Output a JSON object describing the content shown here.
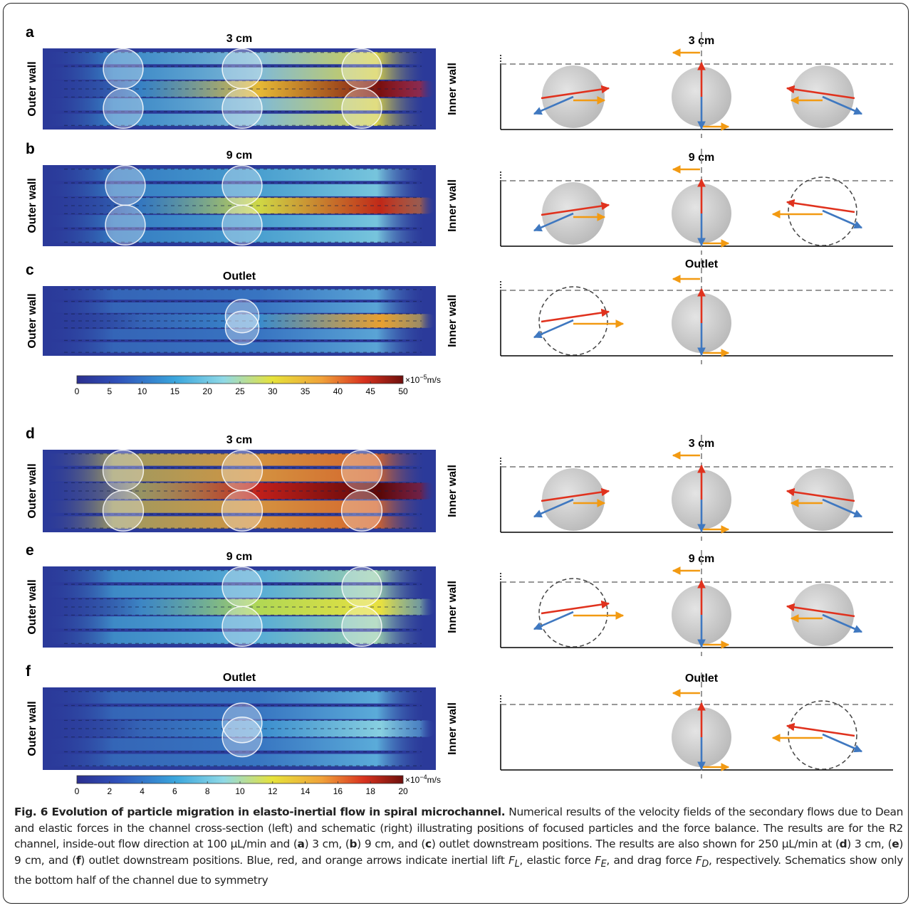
{
  "panels": [
    {
      "label": "a",
      "heatmap_title": "3 cm",
      "schematic_title": "3 cm"
    },
    {
      "label": "b",
      "heatmap_title": "9 cm",
      "schematic_title": "9 cm"
    },
    {
      "label": "c",
      "heatmap_title": "Outlet",
      "schematic_title": "Outlet"
    },
    {
      "label": "d",
      "heatmap_title": "3 cm",
      "schematic_title": "3 cm"
    },
    {
      "label": "e",
      "heatmap_title": "9 cm",
      "schematic_title": "9 cm"
    },
    {
      "label": "f",
      "heatmap_title": "Outlet",
      "schematic_title": "Outlet"
    }
  ],
  "wall_labels": {
    "outer": "Outer wall",
    "inner": "Inner wall"
  },
  "colorbars": [
    {
      "ticks": [
        0,
        5,
        10,
        15,
        20,
        25,
        30,
        35,
        40,
        45,
        50
      ],
      "unit": {
        "prefix": "×10",
        "exponent": "−5",
        "suffix": "m/s"
      }
    },
    {
      "ticks": [
        0,
        2,
        4,
        6,
        8,
        10,
        12,
        14,
        16,
        18,
        20
      ],
      "unit": {
        "prefix": "×10",
        "exponent": "−4",
        "suffix": "m/s"
      }
    }
  ],
  "caption": {
    "title": "Fig. 6 Evolution of particle migration in elasto-inertial flow in spiral microchannel.",
    "runs": [
      " Numerical results of the velocity fields of the secondary flows due to Dean and elastic forces in the channel cross-section (left) and schematic (right) illustrating positions of focused particles and the force balance. The results are for the R2 channel, inside-out flow direction at 100 µL/min and (",
      "a",
      ") 3 cm, (",
      "b",
      ") 9 cm, and (",
      "c",
      ") outlet downstream positions. The results are also shown for 250 µL/min at (",
      "d",
      ") 3 cm, (",
      "e",
      ") 9 cm, and (",
      "f",
      ") outlet downstream positions. Blue, red, and orange arrows indicate inertial lift ",
      "F",
      "L",
      ", elastic force ",
      "F",
      "E",
      ", and drag force ",
      "F",
      "D",
      ", respectively. Schematics show only the bottom half of the channel due to symmetry"
    ]
  }
}
